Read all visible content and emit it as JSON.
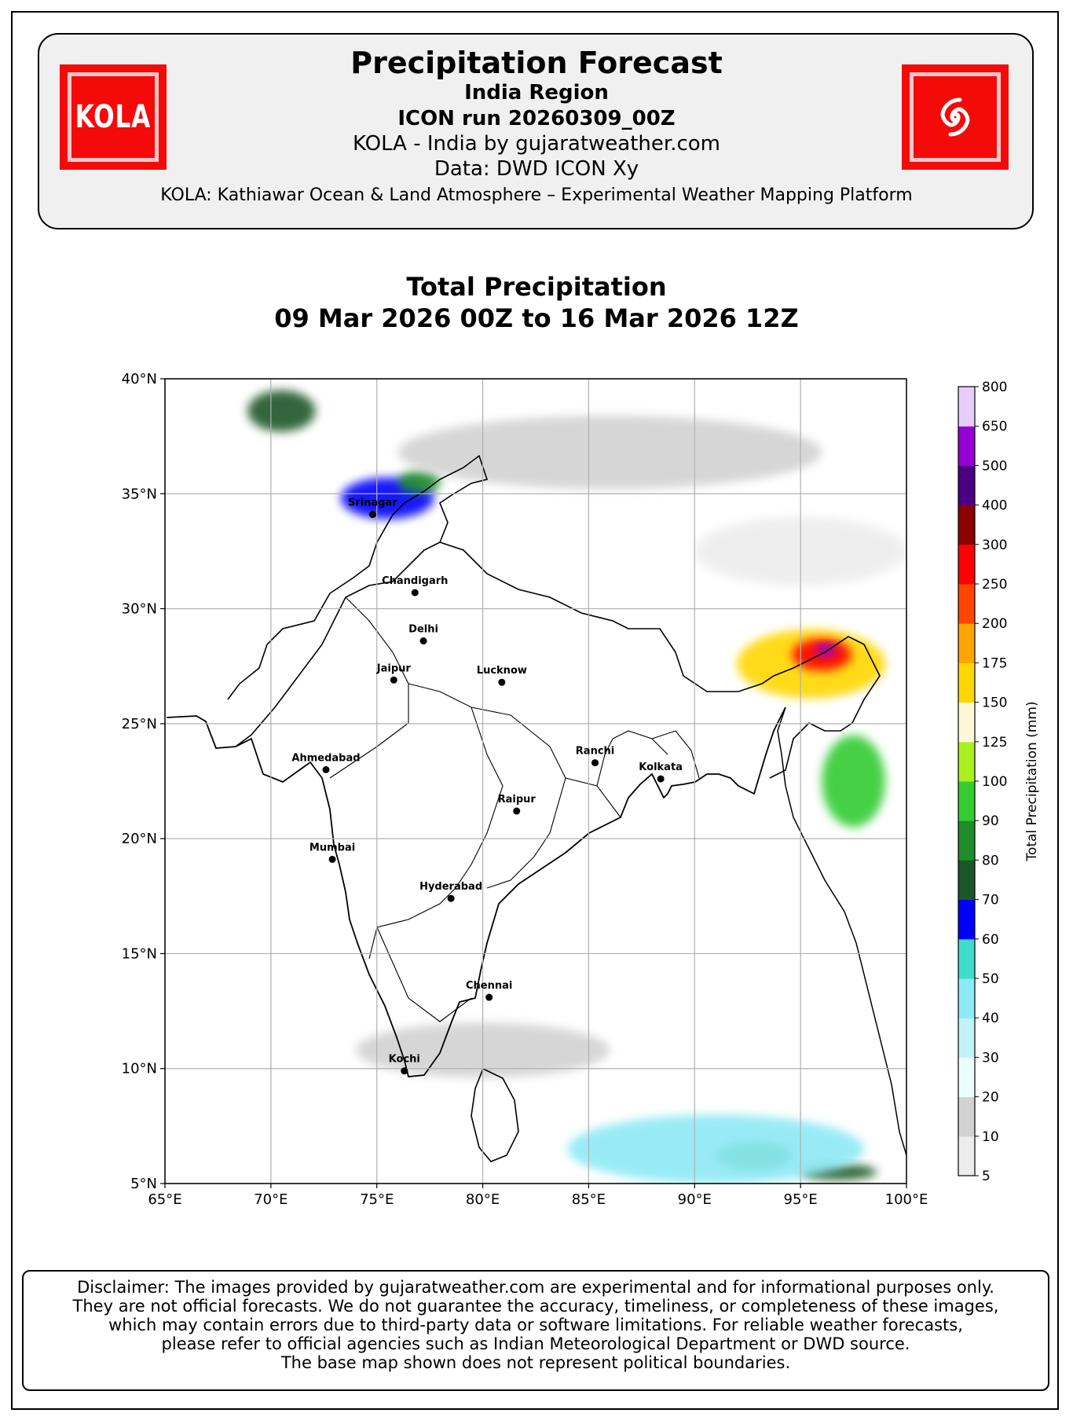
{
  "header": {
    "title": "Precipitation Forecast",
    "region": "India Region",
    "run": "ICON run 20260309_00Z",
    "provider": "KOLA - India by gujaratweather.com",
    "data_source": "Data: DWD ICON Xy",
    "description": "KOLA: Kathiawar Ocean & Land Atmosphere – Experimental Weather Mapping Platform",
    "logo_left_text": "KOLA",
    "logo_right_icon": "cyclone-icon",
    "logo_color": "#f50a0a"
  },
  "map": {
    "title_line1": "Total Precipitation",
    "title_line2": "09 Mar 2026 00Z to 16 Mar 2026 12Z",
    "lon_range": [
      65,
      100
    ],
    "lat_range": [
      5,
      40
    ],
    "lon_ticks": [
      {
        "v": 65,
        "label": "65°E"
      },
      {
        "v": 70,
        "label": "70°E"
      },
      {
        "v": 75,
        "label": "75°E"
      },
      {
        "v": 80,
        "label": "80°E"
      },
      {
        "v": 85,
        "label": "85°E"
      },
      {
        "v": 90,
        "label": "90°E"
      },
      {
        "v": 95,
        "label": "95°E"
      },
      {
        "v": 100,
        "label": "100°E"
      }
    ],
    "lat_ticks": [
      {
        "v": 40,
        "label": "40°N"
      },
      {
        "v": 35,
        "label": "35°N"
      },
      {
        "v": 30,
        "label": "30°N"
      },
      {
        "v": 25,
        "label": "25°N"
      },
      {
        "v": 20,
        "label": "20°N"
      },
      {
        "v": 15,
        "label": "15°N"
      },
      {
        "v": 10,
        "label": "10°N"
      },
      {
        "v": 5,
        "label": "5°N"
      }
    ],
    "cities": [
      {
        "name": "Srinagar",
        "lon": 74.8,
        "lat": 34.1
      },
      {
        "name": "Chandigarh",
        "lon": 76.8,
        "lat": 30.7
      },
      {
        "name": "Delhi",
        "lon": 77.2,
        "lat": 28.6
      },
      {
        "name": "Jaipur",
        "lon": 75.8,
        "lat": 26.9
      },
      {
        "name": "Lucknow",
        "lon": 80.9,
        "lat": 26.8
      },
      {
        "name": "Ahmedabad",
        "lon": 72.6,
        "lat": 23.0
      },
      {
        "name": "Ranchi",
        "lon": 85.3,
        "lat": 23.3
      },
      {
        "name": "Kolkata",
        "lon": 88.4,
        "lat": 22.6
      },
      {
        "name": "Raipur",
        "lon": 81.6,
        "lat": 21.2
      },
      {
        "name": "Mumbai",
        "lon": 72.9,
        "lat": 19.1
      },
      {
        "name": "Hyderabad",
        "lon": 78.5,
        "lat": 17.4
      },
      {
        "name": "Chennai",
        "lon": 80.3,
        "lat": 13.1
      },
      {
        "name": "Kochi",
        "lon": 76.3,
        "lat": 9.9
      }
    ],
    "precip_areas": [
      {
        "lon": 70.5,
        "lat": 38.6,
        "rx": 1.6,
        "ry": 0.9,
        "level": 70
      },
      {
        "lon": 75.5,
        "lat": 34.8,
        "rx": 2.2,
        "ry": 0.9,
        "level": 60
      },
      {
        "lon": 77.0,
        "lat": 35.5,
        "rx": 1.0,
        "ry": 0.5,
        "level": 80
      },
      {
        "lon": 95.5,
        "lat": 27.6,
        "rx": 3.5,
        "ry": 1.5,
        "level": 150
      },
      {
        "lon": 96.0,
        "lat": 28.0,
        "rx": 1.4,
        "ry": 0.7,
        "level": 250
      },
      {
        "lon": 96.2,
        "lat": 28.2,
        "rx": 0.5,
        "ry": 0.3,
        "level": 500
      },
      {
        "lon": 97.5,
        "lat": 22.5,
        "rx": 1.5,
        "ry": 2.0,
        "level": 90
      },
      {
        "lon": 92.8,
        "lat": 6.2,
        "rx": 1.8,
        "ry": 0.6,
        "level": 80
      },
      {
        "lon": 96.8,
        "lat": 5.5,
        "rx": 1.8,
        "ry": 0.35,
        "level": 70
      },
      {
        "lon": 91.0,
        "lat": 6.5,
        "rx": 7.0,
        "ry": 1.5,
        "level": 40
      },
      {
        "lon": 80.0,
        "lat": 10.8,
        "rx": 6.0,
        "ry": 1.2,
        "level": 10
      },
      {
        "lon": 86.0,
        "lat": 36.8,
        "rx": 10.0,
        "ry": 1.6,
        "level": 10
      },
      {
        "lon": 95.0,
        "lat": 32.5,
        "rx": 5.0,
        "ry": 1.5,
        "level": 5
      }
    ]
  },
  "colorbar": {
    "label": "Total Precipitation (mm)",
    "levels": [
      5,
      10,
      20,
      30,
      40,
      50,
      60,
      70,
      80,
      90,
      100,
      125,
      150,
      175,
      200,
      250,
      300,
      400,
      500,
      650,
      800
    ],
    "colors": [
      "#ededed",
      "#d2d2d2",
      "#ecfdfd",
      "#c3f2f9",
      "#8de9f5",
      "#3fdccb",
      "#0000ff",
      "#1a5626",
      "#1e8c2a",
      "#33cc33",
      "#aaf01e",
      "#fff8d8",
      "#ffd700",
      "#ffa500",
      "#ff4500",
      "#ff0000",
      "#8b0000",
      "#4b0082",
      "#9400d3",
      "#e6cdfa"
    ]
  },
  "disclaimer": [
    "Disclaimer: The images provided by gujaratweather.com are experimental and for informational purposes only.",
    "They are not official forecasts. We do not guarantee the accuracy, timeliness, or completeness of these images,",
    "which may contain errors due to third-party data or software limitations. For reliable weather forecasts,",
    "please refer to official agencies such as Indian Meteorological Department or DWD source.",
    "The base map shown does not represent political boundaries."
  ]
}
